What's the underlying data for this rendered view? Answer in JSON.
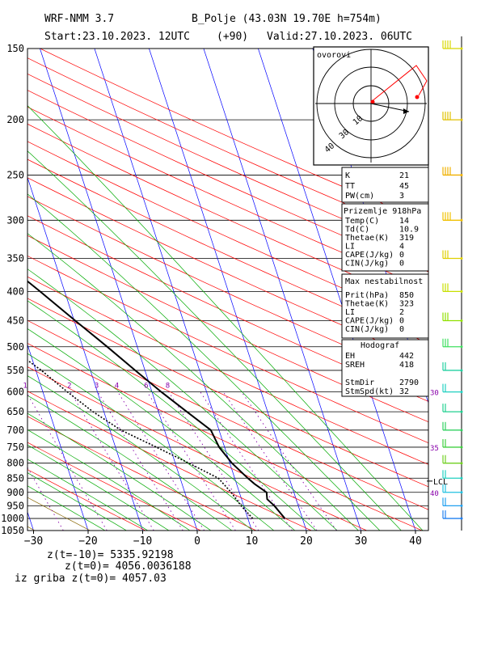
{
  "header": {
    "line1": {
      "model": "WRF-NMM 3.7",
      "station": "B_Polje (43.03N 19.70E  h=754m)"
    },
    "line2": {
      "start": "Start:23.10.2023.  12UTC",
      "step": "(+90)",
      "valid": "Valid:27.10.2023.  06UTC"
    }
  },
  "colors": {
    "temp": "#000000",
    "isotherm": "#0000ff",
    "dry_adiabat": "#ff0000",
    "moist_adiabat": "#00aa00",
    "mixing_ratio": "#8800aa",
    "dry_adiabat_cold": "#886600",
    "hodo_path": "#ff0000",
    "wind_barb": "#ddcc00"
  },
  "chart_data": {
    "type": "line",
    "title": "",
    "xlabel": "",
    "ylabel": "",
    "x_ticks": [
      -30,
      -20,
      -10,
      0,
      10,
      20,
      30,
      40
    ],
    "xlim": [
      -30,
      42
    ],
    "y_ticks": [
      150,
      200,
      250,
      300,
      350,
      400,
      450,
      500,
      550,
      600,
      650,
      700,
      750,
      800,
      850,
      900,
      950,
      1000,
      1050
    ],
    "ylim": [
      150,
      1050
    ],
    "y_scale": "log",
    "skew": true,
    "mixing_ratio_labels": [
      "0.5",
      "1",
      "2",
      "3",
      "4",
      "6",
      "8"
    ],
    "theta_e_labels": [
      "30",
      "35",
      "40"
    ],
    "lcl_label": "LCL",
    "lcl_pressure": 860,
    "series": [
      {
        "name": "",
        "style": "solid",
        "points": [
          [
            1000,
            16.8
          ],
          [
            950,
            15.6
          ],
          [
            925,
            14.7
          ],
          [
            900,
            15.0
          ],
          [
            870,
            13.3
          ],
          [
            850,
            12.4
          ],
          [
            800,
            10.4
          ],
          [
            750,
            9.0
          ],
          [
            700,
            8.5
          ],
          [
            650,
            5.2
          ],
          [
            600,
            1.7
          ],
          [
            550,
            -1.8
          ],
          [
            500,
            -5.5
          ],
          [
            450,
            -9.8
          ],
          [
            400,
            -14.5
          ],
          [
            350,
            -20.0
          ],
          [
            300,
            -26.5
          ],
          [
            250,
            -33.5
          ],
          [
            200,
            -43.5
          ],
          [
            150,
            -40.0
          ]
        ]
      },
      {
        "name": "",
        "style": "dotted",
        "points": [
          [
            1000,
            10.9
          ],
          [
            950,
            9.5
          ],
          [
            900,
            8.5
          ],
          [
            850,
            7.0
          ],
          [
            800,
            2.5
          ],
          [
            750,
            -2.5
          ],
          [
            700,
            -8.0
          ],
          [
            650,
            -12.0
          ],
          [
            600,
            -15.5
          ],
          [
            550,
            -19.0
          ],
          [
            500,
            -23.5
          ],
          [
            450,
            -28.5
          ],
          [
            400,
            -33.5
          ],
          [
            350,
            -40.0
          ],
          [
            300,
            -45.5
          ],
          [
            250,
            -58.0
          ],
          [
            200,
            -75.0
          ],
          [
            150,
            -73.0
          ]
        ]
      }
    ]
  },
  "indices_box1": [
    [
      "K",
      "21"
    ],
    [
      "TT",
      "45"
    ],
    [
      "PW(cm)",
      "3"
    ]
  ],
  "indices_box2": {
    "title": "Prizemlje 918hPa",
    "rows": [
      [
        "Temp(C)",
        "14"
      ],
      [
        "Td(C)",
        "10.9"
      ],
      [
        "Thetae(K)",
        "319"
      ],
      [
        "LI",
        "4"
      ],
      [
        "CAPE(J/kg)",
        "0"
      ],
      [
        "CIN(J/kg)",
        "0"
      ]
    ]
  },
  "indices_box3": {
    "title": "Max nestabilnost",
    "rows": [
      [
        "Prit(hPa)",
        "850"
      ],
      [
        "Thetae(K)",
        "323"
      ],
      [
        "LI",
        "2"
      ],
      [
        "CAPE(J/kg)",
        "0"
      ],
      [
        "CIN(J/kg)",
        "0"
      ]
    ]
  },
  "indices_box4": {
    "title": "Hodograf",
    "rows": [
      [
        "EH",
        "442"
      ],
      [
        "SREH",
        "418"
      ],
      [
        "",
        ""
      ],
      [
        "StmDir",
        "2790"
      ],
      [
        "StmSpd(kt)",
        "32"
      ]
    ]
  },
  "hodograph": {
    "title": "ovorovi",
    "ring_labels": [
      "10",
      "30",
      "40"
    ]
  },
  "footer": {
    "line1": "z(t=-10)=  5335.92198",
    "line2": "z(t=0)=   4056.0036188",
    "line3": "iz griba  z(t=0)=  4057.03"
  },
  "wind_barbs": [
    {
      "p": 150,
      "color": "#d8d800"
    },
    {
      "p": 200,
      "color": "#e0c000"
    },
    {
      "p": 250,
      "color": "#f0b000"
    },
    {
      "p": 300,
      "color": "#f0c000"
    },
    {
      "p": 350,
      "color": "#e0d000"
    },
    {
      "p": 400,
      "color": "#c8e000"
    },
    {
      "p": 450,
      "color": "#90e000"
    },
    {
      "p": 500,
      "color": "#40e060"
    },
    {
      "p": 550,
      "color": "#20d0a0"
    },
    {
      "p": 600,
      "color": "#20d0c0"
    },
    {
      "p": 650,
      "color": "#20d090"
    },
    {
      "p": 700,
      "color": "#30d060"
    },
    {
      "p": 750,
      "color": "#40d040"
    },
    {
      "p": 800,
      "color": "#70d020"
    },
    {
      "p": 850,
      "color": "#20d0c0"
    },
    {
      "p": 900,
      "color": "#20c0e0"
    },
    {
      "p": 950,
      "color": "#20a0f0"
    },
    {
      "p": 1000,
      "color": "#2080f0"
    }
  ]
}
